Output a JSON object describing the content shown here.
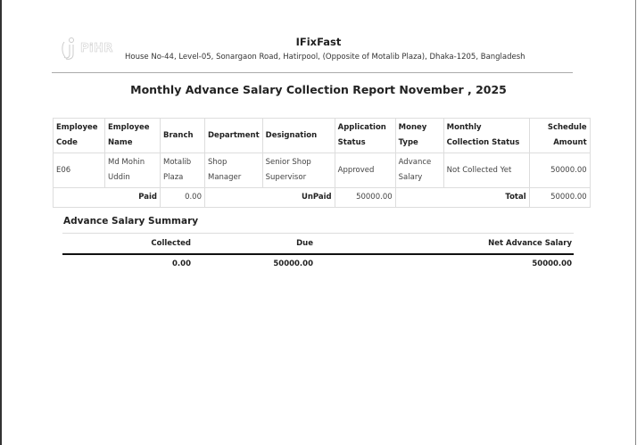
{
  "header": {
    "logo_text": "PiHR",
    "company": "IFixFast",
    "address": "House No-44, Level-05, Sonargaon Road, Hatirpool, (Opposite of Motalib Plaza), Dhaka-1205, Bangladesh",
    "report_title": "Monthly Advance Salary Collection Report November , 2025"
  },
  "table": {
    "columns": [
      "Employee Code",
      "Employee Name",
      "Branch",
      "Department",
      "Designation",
      "Application Status",
      "Money Type",
      "Monthly Collection Status",
      "Schedule Amount"
    ],
    "rows": [
      [
        "E06",
        "Md Mohin Uddin",
        "Motalib Plaza",
        "Shop Manager",
        "Senior Shop Supervisor",
        "Approved",
        "Advance Salary",
        "Not Collected Yet",
        "50000.00"
      ]
    ],
    "footer": {
      "paid_label": "Paid",
      "paid_value": "0.00",
      "unpaid_label": "UnPaid",
      "unpaid_value": "50000.00",
      "total_label": "Total",
      "total_value": "50000.00"
    }
  },
  "summary": {
    "title": "Advance Salary Summary",
    "headers": [
      "Collected",
      "Due",
      "Net Advance Salary"
    ],
    "values": [
      "0.00",
      "50000.00",
      "50000.00"
    ]
  }
}
